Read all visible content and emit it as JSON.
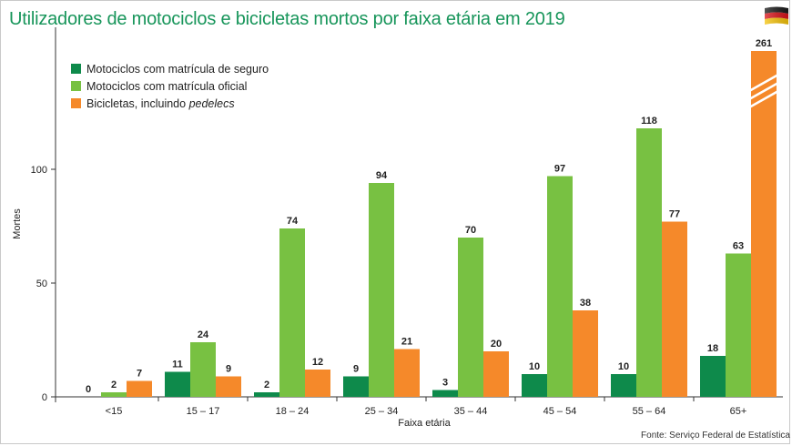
{
  "title": "Utilizadores de motociclos e bicicletas mortos por faixa etária em 2019",
  "source": "Fonte: Serviço Federal de Estatística",
  "flag_icon": "germany-flag-icon",
  "colors": {
    "title": "#17955a",
    "series": [
      "#0e8a4b",
      "#78c142",
      "#f5892a"
    ]
  },
  "chart_data": {
    "type": "bar",
    "xlabel": "Faixa etária",
    "ylabel": "Mortes",
    "ylim": [
      0,
      140
    ],
    "yticks": [
      0,
      50,
      100
    ],
    "axis_break": {
      "series_index": 2,
      "category_index": 7,
      "note": "bar truncated with break marks"
    },
    "categories": [
      "<15",
      "15 – 17",
      "18 – 24",
      "25 – 34",
      "35 – 44",
      "45 – 54",
      "55 – 64",
      "65+"
    ],
    "series": [
      {
        "name": "Motociclos com matrícula de seguro",
        "values": [
          0,
          11,
          2,
          9,
          3,
          10,
          10,
          18
        ]
      },
      {
        "name": "Motociclos com matrícula oficial",
        "values": [
          2,
          24,
          74,
          94,
          70,
          97,
          118,
          63
        ]
      },
      {
        "name": "Bicicletas, incluindo pedelecs",
        "name_prefix": "Bicicletas, incluindo ",
        "name_italic": "pedelecs",
        "values": [
          7,
          9,
          12,
          21,
          20,
          38,
          77,
          261
        ]
      }
    ],
    "legend_position": "top-left",
    "grid": false
  }
}
